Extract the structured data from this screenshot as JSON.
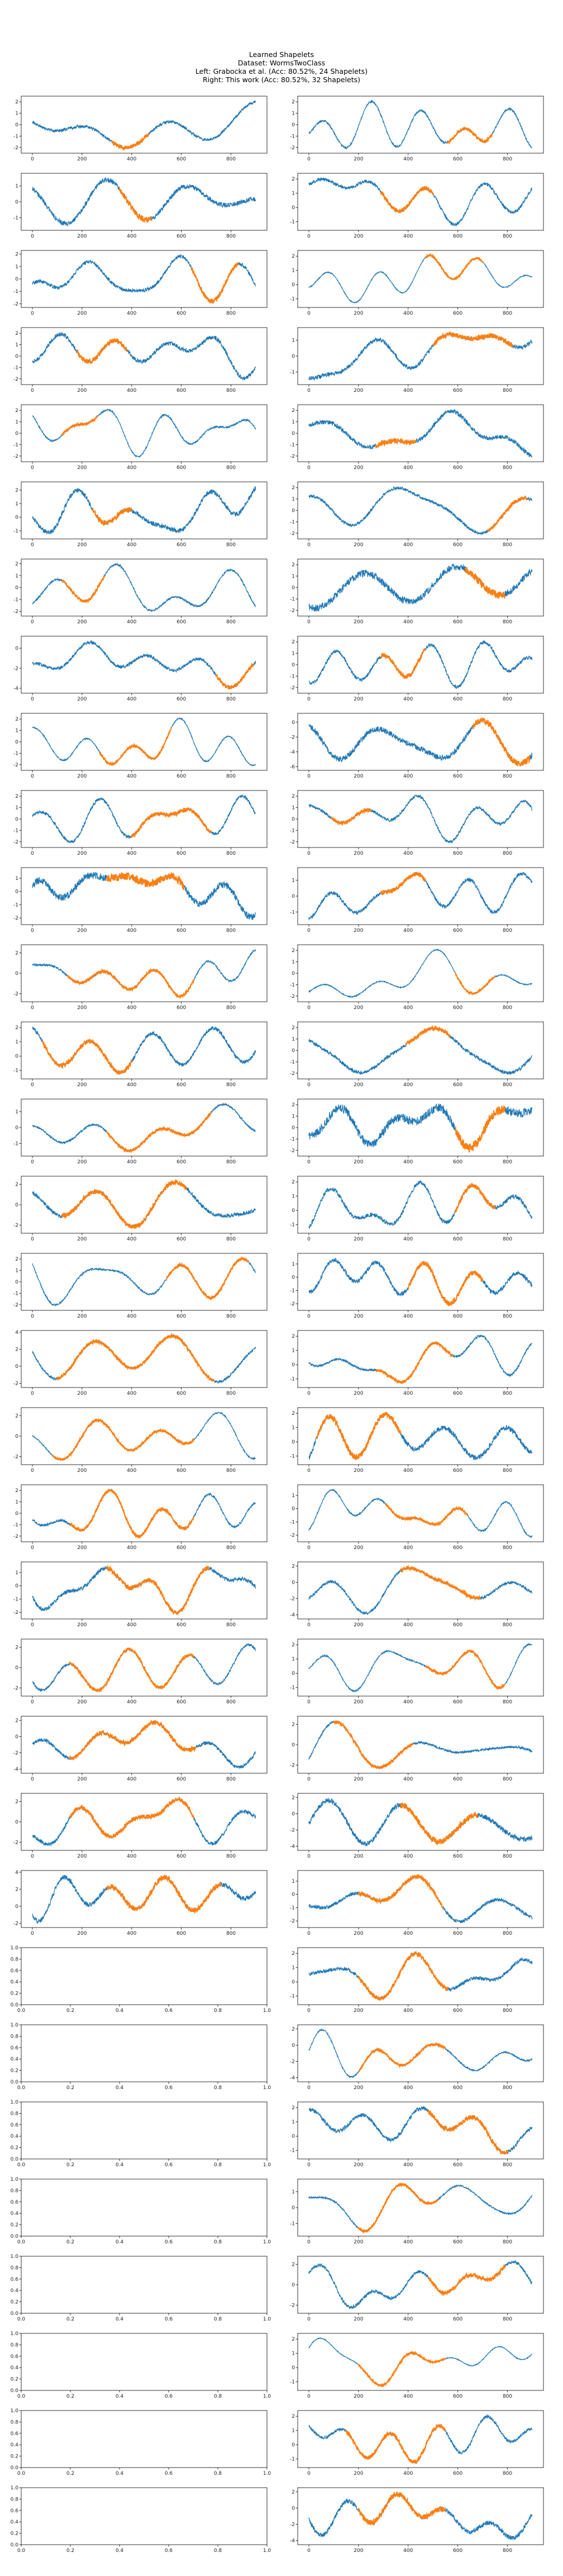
{
  "title": {
    "line1": "Learned Shapelets",
    "line2": "Dataset: WormsTwoClass",
    "line3": "Left: Grabocka et al. (Acc: 80.52%, 24 Shapelets)",
    "line4": "Right: This work (Acc: 80.52%, 32 Shapelets)"
  },
  "colors": {
    "series": "#1f77b4",
    "shapelet": "#ff7f0e",
    "axis": "#000000"
  },
  "chart_data": {
    "type": "line",
    "layout": {
      "rows": 32,
      "cols": 2
    },
    "x_ticks": [
      0,
      200,
      400,
      600,
      800
    ],
    "empty_x_ticks": [
      "0.0",
      "0.2",
      "0.4",
      "0.6",
      "0.8",
      "1.0"
    ],
    "empty_y_ticks": [
      "0.0",
      "0.2",
      "0.4",
      "0.6",
      "0.8",
      "1.0"
    ],
    "series_length": 900,
    "left_panels_with_data": 24,
    "right_panels_with_data": 32,
    "panels": [
      {
        "col": 0,
        "row": 0,
        "yticks": [
          -2,
          -1,
          0,
          1,
          2
        ],
        "ylim": [
          -2.5,
          2.5
        ],
        "shapelet": {
          "start": 320,
          "end": 470
        }
      },
      {
        "col": 0,
        "row": 1,
        "yticks": [
          -1,
          0,
          1
        ],
        "ylim": [
          -1.8,
          1.8
        ],
        "shapelet": {
          "start": 350,
          "end": 480
        }
      },
      {
        "col": 0,
        "row": 2,
        "yticks": [
          -2,
          -1,
          0,
          1,
          2
        ],
        "ylim": [
          -2.3,
          2.3
        ],
        "shapelet": {
          "start": 640,
          "end": 830
        }
      },
      {
        "col": 0,
        "row": 3,
        "yticks": [
          -2,
          -1,
          0,
          1,
          2
        ],
        "ylim": [
          -2.5,
          2.5
        ],
        "shapelet": {
          "start": 180,
          "end": 380
        }
      },
      {
        "col": 0,
        "row": 4,
        "yticks": [
          -2,
          -1,
          0,
          1,
          2
        ],
        "ylim": [
          -2.5,
          2.5
        ],
        "shapelet": {
          "start": 120,
          "end": 260
        }
      },
      {
        "col": 0,
        "row": 5,
        "yticks": [
          -1,
          0,
          1,
          2
        ],
        "ylim": [
          -1.6,
          2.6
        ],
        "shapelet": {
          "start": 240,
          "end": 400
        }
      },
      {
        "col": 0,
        "row": 6,
        "yticks": [
          -2,
          -1,
          0,
          1,
          2
        ],
        "ylim": [
          -2.4,
          2.4
        ],
        "shapelet": {
          "start": 120,
          "end": 290
        }
      },
      {
        "col": 0,
        "row": 7,
        "yticks": [
          -4,
          -2,
          0
        ],
        "ylim": [
          -4.5,
          1.2
        ],
        "shapelet": {
          "start": 740,
          "end": 890
        }
      },
      {
        "col": 0,
        "row": 8,
        "yticks": [
          -2,
          -1,
          0,
          1,
          2
        ],
        "ylim": [
          -2.5,
          2.5
        ],
        "shapelet": {
          "start": 270,
          "end": 560
        }
      },
      {
        "col": 0,
        "row": 9,
        "yticks": [
          -2,
          -1,
          0,
          1,
          2
        ],
        "ylim": [
          -2.5,
          2.5
        ],
        "shapelet": {
          "start": 400,
          "end": 720
        }
      },
      {
        "col": 0,
        "row": 10,
        "yticks": [
          -2,
          -1,
          0,
          1
        ],
        "ylim": [
          -2.5,
          1.8
        ],
        "shapelet": {
          "start": 300,
          "end": 610
        }
      },
      {
        "col": 0,
        "row": 11,
        "yticks": [
          -2,
          0,
          2
        ],
        "ylim": [
          -2.8,
          2.8
        ],
        "shapelet": {
          "start": 140,
          "end": 650
        }
      },
      {
        "col": 0,
        "row": 12,
        "yticks": [
          -1,
          0,
          1,
          2
        ],
        "ylim": [
          -1.6,
          2.4
        ],
        "shapelet": {
          "start": 40,
          "end": 400
        }
      },
      {
        "col": 0,
        "row": 13,
        "yticks": [
          -1,
          0,
          1
        ],
        "ylim": [
          -1.8,
          1.8
        ],
        "shapelet": {
          "start": 300,
          "end": 720
        }
      },
      {
        "col": 0,
        "row": 14,
        "yticks": [
          -2,
          0,
          2
        ],
        "ylim": [
          -2.8,
          2.8
        ],
        "shapelet": {
          "start": 120,
          "end": 620
        }
      },
      {
        "col": 0,
        "row": 15,
        "yticks": [
          -2,
          -1,
          0,
          1,
          2
        ],
        "ylim": [
          -2.5,
          2.5
        ],
        "shapelet": {
          "start": 540,
          "end": 870
        }
      },
      {
        "col": 0,
        "row": 16,
        "yticks": [
          -2,
          0,
          2,
          4
        ],
        "ylim": [
          -2.5,
          4.2
        ],
        "shapelet": {
          "start": 100,
          "end": 730
        }
      },
      {
        "col": 0,
        "row": 17,
        "yticks": [
          -2,
          0,
          2
        ],
        "ylim": [
          -2.8,
          2.8
        ],
        "shapelet": {
          "start": 80,
          "end": 650
        }
      },
      {
        "col": 0,
        "row": 18,
        "yticks": [
          -2,
          -1,
          0,
          1,
          2
        ],
        "ylim": [
          -2.5,
          2.5
        ],
        "shapelet": {
          "start": 150,
          "end": 650
        }
      },
      {
        "col": 0,
        "row": 19,
        "yticks": [
          -2,
          -1,
          0,
          1
        ],
        "ylim": [
          -2.5,
          1.8
        ],
        "shapelet": {
          "start": 300,
          "end": 710
        }
      },
      {
        "col": 0,
        "row": 20,
        "yticks": [
          -2,
          0,
          2
        ],
        "ylim": [
          -2.8,
          2.8
        ],
        "shapelet": {
          "start": 150,
          "end": 650
        }
      },
      {
        "col": 0,
        "row": 21,
        "yticks": [
          -4,
          -2,
          0,
          2
        ],
        "ylim": [
          -4.5,
          2.5
        ],
        "shapelet": {
          "start": 150,
          "end": 660
        }
      },
      {
        "col": 0,
        "row": 22,
        "yticks": [
          -2,
          0,
          2
        ],
        "ylim": [
          -2.8,
          2.8
        ],
        "shapelet": {
          "start": 150,
          "end": 650
        }
      },
      {
        "col": 0,
        "row": 23,
        "yticks": [
          -2,
          0,
          2,
          4
        ],
        "ylim": [
          -2.5,
          4.2
        ],
        "shapelet": {
          "start": 300,
          "end": 760
        }
      },
      {
        "col": 1,
        "row": 0,
        "yticks": [
          -2,
          -1,
          0,
          1,
          2
        ],
        "ylim": [
          -2.5,
          2.5
        ],
        "shapelet": {
          "start": 560,
          "end": 740
        }
      },
      {
        "col": 1,
        "row": 1,
        "yticks": [
          -1,
          0,
          1,
          2
        ],
        "ylim": [
          -1.6,
          2.4
        ],
        "shapelet": {
          "start": 290,
          "end": 500
        }
      },
      {
        "col": 1,
        "row": 2,
        "yticks": [
          -1,
          0,
          1,
          2
        ],
        "ylim": [
          -1.6,
          2.4
        ],
        "shapelet": {
          "start": 470,
          "end": 700
        }
      },
      {
        "col": 1,
        "row": 3,
        "yticks": [
          -1,
          0,
          1
        ],
        "ylim": [
          -1.8,
          1.8
        ],
        "shapelet": {
          "start": 500,
          "end": 820
        }
      },
      {
        "col": 1,
        "row": 4,
        "yticks": [
          -2,
          -1,
          0,
          1,
          2
        ],
        "ylim": [
          -2.5,
          2.5
        ],
        "shapelet": {
          "start": 270,
          "end": 430
        }
      },
      {
        "col": 1,
        "row": 5,
        "yticks": [
          -2,
          -1,
          0,
          1,
          2
        ],
        "ylim": [
          -2.5,
          2.5
        ],
        "shapelet": {
          "start": 720,
          "end": 880
        }
      },
      {
        "col": 1,
        "row": 6,
        "yticks": [
          -2,
          -1,
          0,
          1,
          2
        ],
        "ylim": [
          -2.5,
          2.5
        ],
        "shapelet": {
          "start": 630,
          "end": 790
        }
      },
      {
        "col": 1,
        "row": 7,
        "yticks": [
          -2,
          -1,
          0,
          1,
          2
        ],
        "ylim": [
          -2.5,
          2.5
        ],
        "shapelet": {
          "start": 290,
          "end": 470
        }
      },
      {
        "col": 1,
        "row": 8,
        "yticks": [
          -6,
          -4,
          -2,
          0
        ],
        "ylim": [
          -6.5,
          1.2
        ],
        "shapelet": {
          "start": 660,
          "end": 890
        }
      },
      {
        "col": 1,
        "row": 9,
        "yticks": [
          -2,
          -1,
          0,
          1,
          2
        ],
        "ylim": [
          -2.5,
          2.5
        ],
        "shapelet": {
          "start": 90,
          "end": 250
        }
      },
      {
        "col": 1,
        "row": 10,
        "yticks": [
          -1,
          0,
          1
        ],
        "ylim": [
          -1.8,
          1.8
        ],
        "shapelet": {
          "start": 290,
          "end": 470
        }
      },
      {
        "col": 1,
        "row": 11,
        "yticks": [
          -2,
          -1,
          0,
          1,
          2
        ],
        "ylim": [
          -2.5,
          2.5
        ],
        "shapelet": {
          "start": 590,
          "end": 750
        }
      },
      {
        "col": 1,
        "row": 12,
        "yticks": [
          -2,
          -1,
          0,
          1,
          2
        ],
        "ylim": [
          -2.5,
          2.5
        ],
        "shapelet": {
          "start": 390,
          "end": 570
        }
      },
      {
        "col": 1,
        "row": 13,
        "yticks": [
          -2,
          -1,
          0,
          1,
          2
        ],
        "ylim": [
          -2.5,
          2.5
        ],
        "shapelet": {
          "start": 590,
          "end": 790
        }
      },
      {
        "col": 1,
        "row": 14,
        "yticks": [
          -1,
          0,
          1,
          2
        ],
        "ylim": [
          -1.6,
          2.4
        ],
        "shapelet": {
          "start": 590,
          "end": 750
        }
      },
      {
        "col": 1,
        "row": 15,
        "yticks": [
          -2,
          -1,
          0,
          1
        ],
        "ylim": [
          -2.5,
          1.8
        ],
        "shapelet": {
          "start": 400,
          "end": 700
        }
      },
      {
        "col": 1,
        "row": 16,
        "yticks": [
          -1,
          0,
          1,
          2
        ],
        "ylim": [
          -1.6,
          2.4
        ],
        "shapelet": {
          "start": 270,
          "end": 580
        }
      },
      {
        "col": 1,
        "row": 17,
        "yticks": [
          -1,
          0,
          1,
          2
        ],
        "ylim": [
          -1.6,
          2.4
        ],
        "shapelet": {
          "start": 30,
          "end": 370
        }
      },
      {
        "col": 1,
        "row": 18,
        "yticks": [
          -2,
          -1,
          0,
          1
        ],
        "ylim": [
          -2.5,
          1.8
        ],
        "shapelet": {
          "start": 310,
          "end": 640
        }
      },
      {
        "col": 1,
        "row": 19,
        "yticks": [
          -4,
          -2,
          0,
          2
        ],
        "ylim": [
          -4.5,
          2.5
        ],
        "shapelet": {
          "start": 370,
          "end": 690
        }
      },
      {
        "col": 1,
        "row": 20,
        "yticks": [
          -1,
          0,
          1,
          2
        ],
        "ylim": [
          -1.6,
          2.4
        ],
        "shapelet": {
          "start": 470,
          "end": 790
        }
      },
      {
        "col": 1,
        "row": 21,
        "yticks": [
          -2,
          0,
          2
        ],
        "ylim": [
          -2.8,
          2.8
        ],
        "shapelet": {
          "start": 100,
          "end": 420
        }
      },
      {
        "col": 1,
        "row": 22,
        "yticks": [
          -4,
          -2,
          0,
          2
        ],
        "ylim": [
          -4.5,
          2.5
        ],
        "shapelet": {
          "start": 370,
          "end": 680
        }
      },
      {
        "col": 1,
        "row": 23,
        "yticks": [
          -2,
          -1,
          0,
          1
        ],
        "ylim": [
          -2.5,
          1.8
        ],
        "shapelet": {
          "start": 200,
          "end": 540
        }
      },
      {
        "col": 1,
        "row": 24,
        "yticks": [
          -1,
          0,
          1,
          2
        ],
        "ylim": [
          -1.6,
          2.4
        ],
        "shapelet": {
          "start": 200,
          "end": 560
        }
      },
      {
        "col": 1,
        "row": 25,
        "yticks": [
          -4,
          -2,
          0,
          2
        ],
        "ylim": [
          -4.5,
          2.5
        ],
        "shapelet": {
          "start": 200,
          "end": 550
        }
      },
      {
        "col": 1,
        "row": 26,
        "yticks": [
          -1,
          0,
          1,
          2
        ],
        "ylim": [
          -1.6,
          2.4
        ],
        "shapelet": {
          "start": 480,
          "end": 800
        }
      },
      {
        "col": 1,
        "row": 27,
        "yticks": [
          -1,
          0,
          1
        ],
        "ylim": [
          -1.8,
          1.8
        ],
        "shapelet": {
          "start": 200,
          "end": 520
        }
      },
      {
        "col": 1,
        "row": 28,
        "yticks": [
          -2,
          0,
          2
        ],
        "ylim": [
          -2.8,
          2.8
        ],
        "shapelet": {
          "start": 480,
          "end": 790
        }
      },
      {
        "col": 1,
        "row": 29,
        "yticks": [
          -1,
          0,
          1,
          2
        ],
        "ylim": [
          -1.6,
          2.4
        ],
        "shapelet": {
          "start": 200,
          "end": 550
        }
      },
      {
        "col": 1,
        "row": 30,
        "yticks": [
          -1,
          0,
          1,
          2
        ],
        "ylim": [
          -1.6,
          2.4
        ],
        "shapelet": {
          "start": 150,
          "end": 550
        }
      },
      {
        "col": 1,
        "row": 31,
        "yticks": [
          -4,
          -2,
          0,
          2
        ],
        "ylim": [
          -4.5,
          2.5
        ],
        "shapelet": {
          "start": 200,
          "end": 550
        }
      }
    ]
  }
}
